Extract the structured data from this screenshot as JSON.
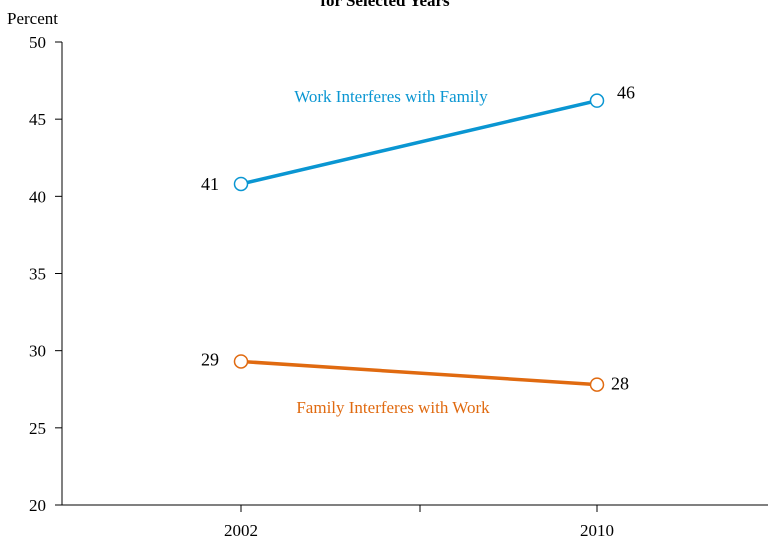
{
  "chart_data": {
    "type": "line",
    "title": "for Selected Years",
    "ylabel": "Percent",
    "xlabel": "",
    "categories": [
      "2002",
      "2010"
    ],
    "ylim": [
      20,
      50
    ],
    "yticks": [
      20,
      25,
      30,
      35,
      40,
      45,
      50
    ],
    "grid": false,
    "series": [
      {
        "name": "Work Interferes with Family",
        "values": [
          40.8,
          46.2
        ],
        "labels": [
          "41",
          "46"
        ],
        "color": "#0a96d2"
      },
      {
        "name": "Family Interferes with Work",
        "values": [
          29.3,
          27.8
        ],
        "labels": [
          "29",
          "28"
        ],
        "color": "#e06a10"
      }
    ]
  }
}
